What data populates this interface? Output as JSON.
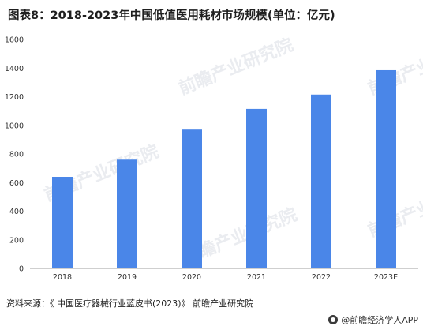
{
  "header": {
    "title": "图表8：2018-2023年中国低值医用耗材市场规模(单位：亿元)"
  },
  "footer": {
    "source": "资料来源：《 中国医疗器械行业蓝皮书(2023)》 前瞻产业研究院",
    "brand": "@前瞻经济学人APP"
  },
  "watermark": {
    "text": "前瞻产业研究院",
    "color": "#d9dde3"
  },
  "chart_data": {
    "type": "bar",
    "categories": [
      "2018",
      "2019",
      "2020",
      "2021",
      "2022",
      "2023E"
    ],
    "values": [
      640,
      760,
      970,
      1115,
      1215,
      1385
    ],
    "ylim": [
      0,
      1600
    ],
    "yticks": [
      0,
      200,
      400,
      600,
      800,
      1000,
      1200,
      1400,
      1600
    ],
    "bar_color": "#4a86e8",
    "grid": false,
    "legend": "none",
    "title": "",
    "xlabel": "",
    "ylabel": ""
  }
}
